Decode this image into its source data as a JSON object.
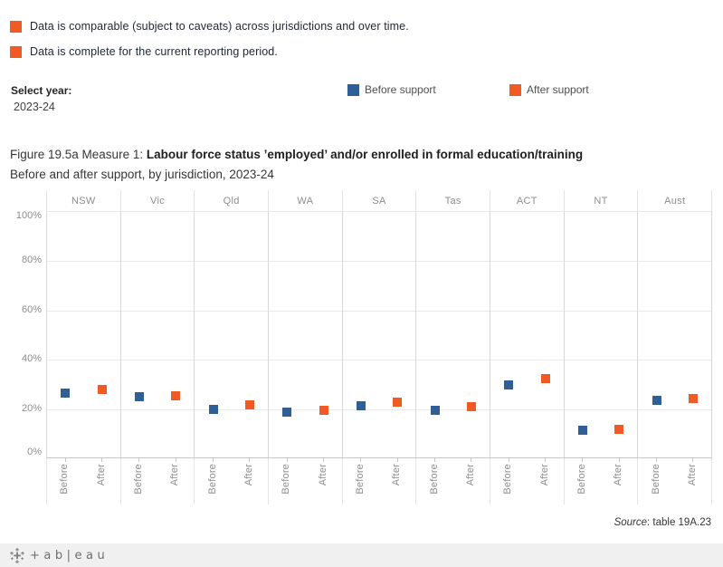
{
  "caveats": {
    "swatch_color": "#f15a24",
    "items": [
      {
        "label": "Data is comparable (subject to caveats) across jurisdictions and over time."
      },
      {
        "label": "Data is complete for the current reporting period."
      }
    ]
  },
  "year_control": {
    "label": "Select year:",
    "value": "2023-24"
  },
  "chart_data": {
    "type": "scatter",
    "marker": "square",
    "title_prefix": "Figure 19.5a Measure 1: ",
    "title_bold": "Labour force status ’employed’ and/or enrolled in formal education/training",
    "title_line2": "Before and after support, by jurisdiction, 2023-24",
    "categories": [
      "NSW",
      "Vic",
      "Qld",
      "WA",
      "SA",
      "Tas",
      "ACT",
      "NT",
      "Aust"
    ],
    "x_sublabels": [
      "Before",
      "After"
    ],
    "series": [
      {
        "name": "Before support",
        "color": "#2f5f94",
        "values": [
          26,
          24.5,
          19.5,
          18.5,
          21,
          19,
          29.5,
          11,
          23
        ]
      },
      {
        "name": "After support",
        "color": "#f15a24",
        "values": [
          27.5,
          25,
          21.5,
          19,
          22.5,
          20.5,
          32,
          11.5,
          24
        ]
      }
    ],
    "y_ticks": [
      "0%",
      "20%",
      "40%",
      "60%",
      "80%",
      "100%"
    ],
    "ylim": [
      0,
      100
    ],
    "grid": true,
    "legend_position": "top"
  },
  "source": {
    "label_italic": "Source",
    "label_rest": ": table 19A.23"
  },
  "footer": {
    "logo_text": "+ab|eau"
  }
}
